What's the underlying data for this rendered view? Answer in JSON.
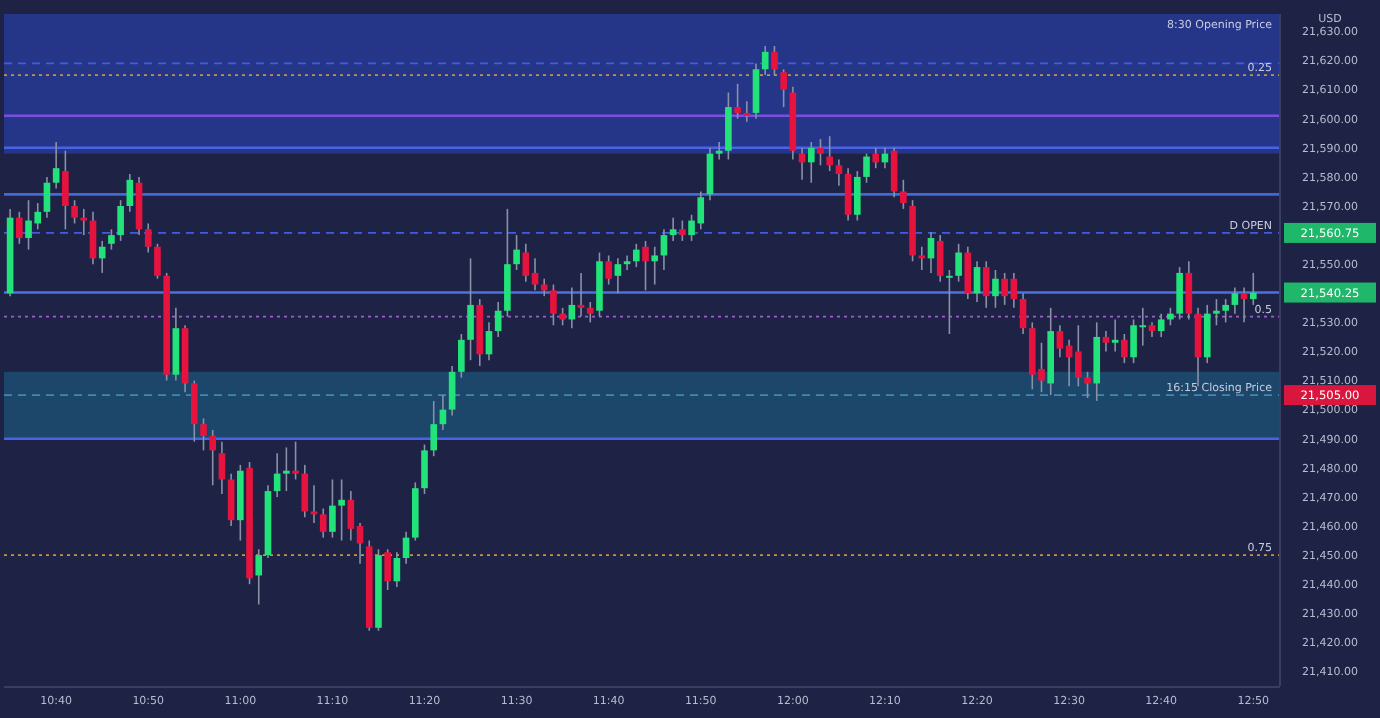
{
  "chart_data": {
    "type": "candlestick",
    "ylabel": "USD",
    "categories": [
      null,
      null,
      null,
      null,
      null,
      "10:40",
      null,
      null,
      null,
      null,
      null,
      null,
      null,
      null,
      null,
      "10:50",
      null,
      null,
      null,
      null,
      null,
      null,
      null,
      null,
      null,
      "11:00",
      null,
      null,
      null,
      null,
      null,
      null,
      null,
      null,
      null,
      "11:10",
      null,
      null,
      null,
      null,
      null,
      null,
      null,
      null,
      null,
      "11:20",
      null,
      null,
      null,
      null,
      null,
      null,
      null,
      null,
      null,
      "11:30",
      null,
      null,
      null,
      null,
      null,
      null,
      null,
      null,
      null,
      "11:40",
      null,
      null,
      null,
      null,
      null,
      null,
      null,
      null,
      null,
      "11:50",
      null,
      null,
      null,
      null,
      null,
      null,
      null,
      null,
      null,
      "12:00",
      null,
      null,
      null,
      null,
      null,
      null,
      null,
      null,
      null,
      "12:10",
      null,
      null,
      null,
      null,
      null,
      null,
      null,
      null,
      null,
      "12:20",
      null,
      null,
      null,
      null,
      null,
      null,
      null,
      null,
      null,
      "12:30",
      null,
      null,
      null,
      null,
      null,
      null,
      null,
      null,
      null,
      "12:40",
      null,
      null,
      null,
      null,
      null,
      null,
      null,
      null,
      null,
      "12:50"
    ],
    "ohlc": [
      [
        21540,
        21569,
        21539,
        21566
      ],
      [
        21566,
        21568,
        21557,
        21559
      ],
      [
        21559,
        21572,
        21555,
        21565
      ],
      [
        21564,
        21571,
        21562,
        21568
      ],
      [
        21568,
        21580,
        21566,
        21578
      ],
      [
        21578,
        21592,
        21576,
        21583
      ],
      [
        21582,
        21589,
        21562,
        21570
      ],
      [
        21570,
        21572,
        21564,
        21566
      ],
      [
        21566,
        21569,
        21560,
        21565
      ],
      [
        21565,
        21568,
        21550,
        21552
      ],
      [
        21552,
        21558,
        21547,
        21556
      ],
      [
        21557,
        21562,
        21555,
        21560
      ],
      [
        21560,
        21572,
        21558,
        21570
      ],
      [
        21570,
        21581,
        21568,
        21579
      ],
      [
        21578,
        21580,
        21560,
        21562
      ],
      [
        21562,
        21564,
        21554,
        21556
      ],
      [
        21556,
        21557,
        21545,
        21546
      ],
      [
        21546,
        21547,
        21510,
        21512
      ],
      [
        21512,
        21535,
        21510,
        21528
      ],
      [
        21528,
        21529,
        21506,
        21509
      ],
      [
        21509,
        21510,
        21489,
        21495
      ],
      [
        21495,
        21497,
        21486,
        21491
      ],
      [
        21491,
        21493,
        21474,
        21486
      ],
      [
        21485,
        21489,
        21471,
        21476
      ],
      [
        21476,
        21478,
        21460,
        21462
      ],
      [
        21462,
        21481,
        21455,
        21479
      ],
      [
        21480,
        21482,
        21440,
        21442
      ],
      [
        21443,
        21452,
        21433,
        21450
      ],
      [
        21450,
        21474,
        21449,
        21472
      ],
      [
        21472,
        21485,
        21470,
        21478
      ],
      [
        21478,
        21487,
        21472,
        21479
      ],
      [
        21479,
        21489,
        21476,
        21478
      ],
      [
        21478,
        21481,
        21463,
        21465
      ],
      [
        21465,
        21474,
        21461,
        21464
      ],
      [
        21464,
        21466,
        21456,
        21458
      ],
      [
        21458,
        21476,
        21456,
        21467
      ],
      [
        21467,
        21476,
        21455,
        21469
      ],
      [
        21469,
        21472,
        21455,
        21459
      ],
      [
        21460,
        21461,
        21447,
        21454
      ],
      [
        21453,
        21455,
        21424,
        21425
      ],
      [
        21425,
        21452,
        21424,
        21450
      ],
      [
        21451,
        21452,
        21438,
        21441
      ],
      [
        21441,
        21451,
        21439,
        21449
      ],
      [
        21449,
        21458,
        21447,
        21456
      ],
      [
        21456,
        21475,
        21455,
        21473
      ],
      [
        21473,
        21488,
        21471,
        21486
      ],
      [
        21486,
        21503,
        21484,
        21495
      ],
      [
        21495,
        21505,
        21493,
        21500
      ],
      [
        21500,
        21515,
        21498,
        21513
      ],
      [
        21513,
        21526,
        21511,
        21524
      ],
      [
        21524,
        21552,
        21517,
        21536
      ],
      [
        21536,
        21538,
        21515,
        21519
      ],
      [
        21519,
        21530,
        21517,
        21527
      ],
      [
        21527,
        21537,
        21525,
        21534
      ],
      [
        21534,
        21569,
        21532,
        21550
      ],
      [
        21550,
        21560,
        21548,
        21555
      ],
      [
        21554,
        21557,
        21544,
        21546
      ],
      [
        21547,
        21552,
        21541,
        21543
      ],
      [
        21543,
        21545,
        21539,
        21541
      ],
      [
        21541,
        21543,
        21529,
        21533
      ],
      [
        21533,
        21535,
        21529,
        21531
      ],
      [
        21531,
        21542,
        21528,
        21536
      ],
      [
        21536,
        21547,
        21532,
        21535
      ],
      [
        21535,
        21537,
        21530,
        21533
      ],
      [
        21534,
        21554,
        21532,
        21551
      ],
      [
        21551,
        21553,
        21543,
        21545
      ],
      [
        21546,
        21552,
        21540,
        21550
      ],
      [
        21550,
        21553,
        21548,
        21551
      ],
      [
        21551,
        21557,
        21549,
        21555
      ],
      [
        21556,
        21558,
        21541,
        21551
      ],
      [
        21551,
        21556,
        21543,
        21553
      ],
      [
        21553,
        21562,
        21548,
        21560
      ],
      [
        21560,
        21566,
        21558,
        21562
      ],
      [
        21562,
        21565,
        21558,
        21560
      ],
      [
        21560,
        21567,
        21558,
        21565
      ],
      [
        21564,
        21575,
        21562,
        21573
      ],
      [
        21574,
        21590,
        21572,
        21588
      ],
      [
        21588,
        21592,
        21586,
        21589
      ],
      [
        21589,
        21609,
        21586,
        21604
      ],
      [
        21604,
        21612,
        21600,
        21602
      ],
      [
        21602,
        21606,
        21599,
        21601
      ],
      [
        21602,
        21619,
        21600,
        21617
      ],
      [
        21617,
        21625,
        21615,
        21623
      ],
      [
        21623,
        21625,
        21615,
        21617
      ],
      [
        21616,
        21617,
        21604,
        21610
      ],
      [
        21609,
        21611,
        21586,
        21589
      ],
      [
        21588,
        21590,
        21579,
        21585
      ],
      [
        21585,
        21592,
        21578,
        21590
      ],
      [
        21590,
        21593,
        21584,
        21588
      ],
      [
        21587,
        21594,
        21582,
        21584
      ],
      [
        21584,
        21586,
        21577,
        21581
      ],
      [
        21581,
        21583,
        21565,
        21567
      ],
      [
        21567,
        21582,
        21565,
        21580
      ],
      [
        21580,
        21588,
        21578,
        21587
      ],
      [
        21588,
        21590,
        21583,
        21585
      ],
      [
        21585,
        21590,
        21583,
        21588
      ],
      [
        21589,
        21590,
        21573,
        21575
      ],
      [
        21575,
        21579,
        21569,
        21571
      ],
      [
        21570,
        21572,
        21551,
        21553
      ],
      [
        21553,
        21556,
        21548,
        21552
      ],
      [
        21552,
        21561,
        21547,
        21559
      ],
      [
        21558,
        21560,
        21544,
        21546
      ],
      [
        21546,
        21548,
        21526,
        21546
      ],
      [
        21546,
        21557,
        21544,
        21554
      ],
      [
        21554,
        21556,
        21538,
        21540
      ],
      [
        21540,
        21551,
        21537,
        21549
      ],
      [
        21549,
        21551,
        21535,
        21539
      ],
      [
        21539,
        21548,
        21535,
        21545
      ],
      [
        21545,
        21547,
        21536,
        21539
      ],
      [
        21545,
        21547,
        21535,
        21538
      ],
      [
        21538,
        21540,
        21526,
        21528
      ],
      [
        21528,
        21530,
        21507,
        21512
      ],
      [
        21514,
        21523,
        21506,
        21510
      ],
      [
        21509,
        21535,
        21505,
        21527
      ],
      [
        21527,
        21529,
        21518,
        21521
      ],
      [
        21522,
        21524,
        21508,
        21518
      ],
      [
        21520,
        21529,
        21508,
        21511
      ],
      [
        21511,
        21513,
        21504,
        21509
      ],
      [
        21509,
        21530,
        21503,
        21525
      ],
      [
        21525,
        21527,
        21520,
        21523
      ],
      [
        21523,
        21531,
        21520,
        21524
      ],
      [
        21524,
        21526,
        21516,
        21518
      ],
      [
        21518,
        21531,
        21516,
        21529
      ],
      [
        21529,
        21535,
        21522,
        21529
      ],
      [
        21529,
        21530,
        21525,
        21527
      ],
      [
        21527,
        21533,
        21525,
        21531
      ],
      [
        21531,
        21535,
        21529,
        21533
      ],
      [
        21533,
        21549,
        21531,
        21547
      ],
      [
        21547,
        21551,
        21531,
        21533
      ],
      [
        21533,
        21535,
        21508,
        21518
      ],
      [
        21518,
        21536,
        21516,
        21533
      ],
      [
        21533,
        21538,
        21529,
        21534
      ],
      [
        21534,
        21538,
        21530,
        21536
      ],
      [
        21536,
        21542,
        21533,
        21540
      ],
      [
        21540,
        21542,
        21530,
        21538
      ],
      [
        21538,
        21547,
        21536,
        21540.25
      ]
    ],
    "ylim": [
      21405,
      21636
    ],
    "yticks": [
      {
        "value": 21410,
        "label": "21,410.00"
      },
      {
        "value": 21420,
        "label": "21,420.00"
      },
      {
        "value": 21430,
        "label": "21,430.00"
      },
      {
        "value": 21440,
        "label": "21,440.00"
      },
      {
        "value": 21450,
        "label": "21,450.00"
      },
      {
        "value": 21460,
        "label": "21,460.00"
      },
      {
        "value": 21470,
        "label": "21,470.00"
      },
      {
        "value": 21480,
        "label": "21,480.00"
      },
      {
        "value": 21490,
        "label": "21,490.00"
      },
      {
        "value": 21500,
        "label": "21,500.00"
      },
      {
        "value": 21510,
        "label": "21,510.00"
      },
      {
        "value": 21520,
        "label": "21,520.00"
      },
      {
        "value": 21530,
        "label": "21,530.00"
      },
      {
        "value": 21550,
        "label": "21,550.00"
      },
      {
        "value": 21570,
        "label": "21,570.00"
      },
      {
        "value": 21580,
        "label": "21,580.00"
      },
      {
        "value": 21590,
        "label": "21,590.00"
      },
      {
        "value": 21600,
        "label": "21,600.00"
      },
      {
        "value": 21610,
        "label": "21,610.00"
      },
      {
        "value": 21620,
        "label": "21,620.00"
      },
      {
        "value": 21630,
        "label": "21,630.00"
      }
    ],
    "bands": [
      {
        "axis": "y",
        "from": 21588,
        "to": 21636,
        "label": "8:30 Opening Price",
        "color": "#26398f"
      },
      {
        "axis": "y",
        "from": 21490,
        "to": 21513,
        "label": null,
        "color": "#1c4a6e"
      }
    ],
    "ref_lines": [
      {
        "axis": "y",
        "value": 21619,
        "label": null,
        "color": "#3f5de0",
        "line_style": "dashed"
      },
      {
        "axis": "y",
        "value": 21615,
        "label": null,
        "color": "#c8963a",
        "line_style": "dotted"
      },
      {
        "axis": "y",
        "value": 21601,
        "label": null,
        "color": "#7a4fe0",
        "line_style": "solid"
      },
      {
        "axis": "y",
        "value": 21590,
        "label": null,
        "color": "#4a62e8",
        "line_style": "solid"
      },
      {
        "axis": "y",
        "value": 21574,
        "label": null,
        "color": "#3f6ad8",
        "line_style": "solid"
      },
      {
        "axis": "y",
        "value": 21560.75,
        "label": "21,560.75",
        "color": "#3f5de0",
        "line_style": "dashed"
      },
      {
        "axis": "y",
        "value": 21540.25,
        "label": "21,540.25",
        "color": "#4a72e0",
        "line_style": "solid"
      },
      {
        "axis": "y",
        "value": 21532,
        "label": null,
        "color": "#9a5fc8",
        "line_style": "dotted"
      },
      {
        "axis": "y",
        "value": 21505,
        "label": "21,505.00",
        "color": "#3f8ab0",
        "line_style": "dashed"
      },
      {
        "axis": "y",
        "value": 21490,
        "label": null,
        "color": "#4a62e8",
        "line_style": "solid"
      },
      {
        "axis": "y",
        "value": 21450,
        "label": null,
        "color": "#c8963a",
        "line_style": "dotted"
      }
    ],
    "annotations": [
      {
        "text": "0.25",
        "y": 21615
      },
      {
        "text": "D OPEN",
        "y": 21560.75
      },
      {
        "text": "0.5",
        "y": 21532
      },
      {
        "text": "16:15 Closing Price",
        "y": 21505
      },
      {
        "text": "0.75",
        "y": 21450
      }
    ],
    "grid": false
  }
}
